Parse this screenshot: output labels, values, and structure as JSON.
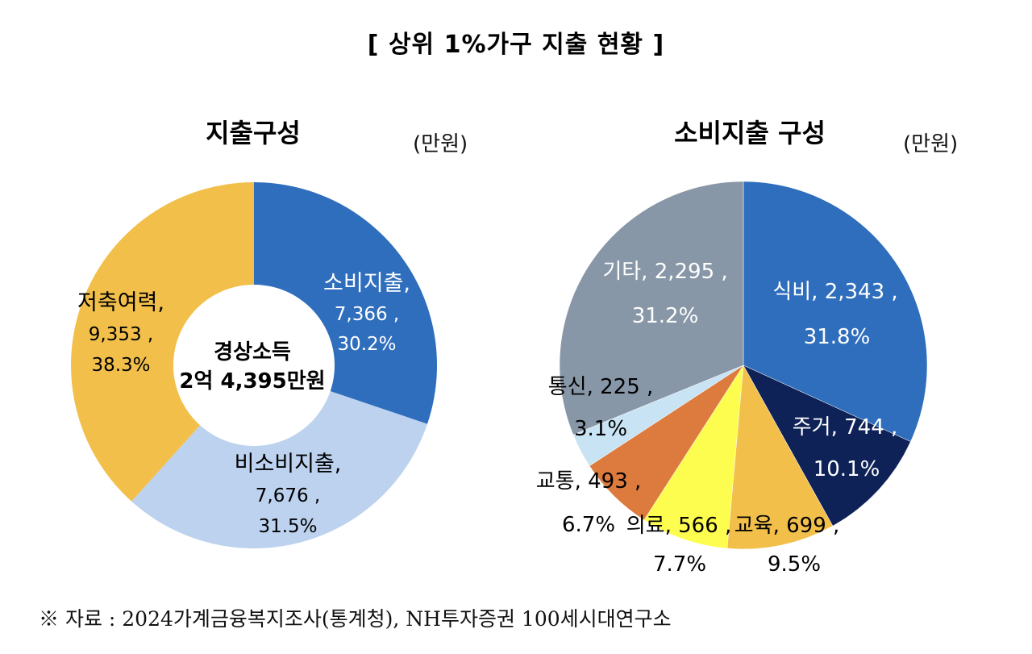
{
  "title": "[ 상위 1%가구 지출 현황 ]",
  "unit": "(만원)",
  "source": "※ 자료 : 2024가계금융복지조사(통계청), NH투자증권 100세시대연구소",
  "chart_data": [
    {
      "type": "donut",
      "title": "지출구성",
      "center_label": [
        "경상소득",
        "2억 4,395만원"
      ],
      "slices": [
        {
          "name": "소비지출,",
          "value": 7366,
          "value_label": "7,366 ,",
          "percent_label": "30.2%",
          "color": "#2f6ebc",
          "text_color": "#ffffff"
        },
        {
          "name": "비소비지출,",
          "value": 7676,
          "value_label": "7,676 ,",
          "percent_label": "31.5%",
          "color": "#bcd2ee",
          "text_color": "#000000"
        },
        {
          "name": "저축여력,",
          "value": 9353,
          "value_label": "9,353 ,",
          "percent_label": "38.3%",
          "color": "#f2c04a",
          "text_color": "#000000"
        }
      ]
    },
    {
      "type": "pie",
      "title": "소비지출 구성",
      "slices": [
        {
          "name": "식비,",
          "value": 2343,
          "value_label": "2,343 ,",
          "percent_label": "31.8%",
          "color": "#2f6ebc",
          "text_color": "#ffffff"
        },
        {
          "name": "주거,",
          "value": 744,
          "value_label": "744 ,",
          "percent_label": "10.1%",
          "color": "#0e2258",
          "text_color": "#ffffff"
        },
        {
          "name": "교육,",
          "value": 699,
          "value_label": "699 ,",
          "percent_label": "9.5%",
          "color": "#f2c04a",
          "text_color": "#000000"
        },
        {
          "name": "의료,",
          "value": 566,
          "value_label": "566 ,",
          "percent_label": "7.7%",
          "color": "#fdfd50",
          "text_color": "#000000"
        },
        {
          "name": "교통,",
          "value": 493,
          "value_label": "493 ,",
          "percent_label": "6.7%",
          "color": "#dd7a3e",
          "text_color": "#000000"
        },
        {
          "name": "통신,",
          "value": 225,
          "value_label": "225 ,",
          "percent_label": "3.1%",
          "color": "#c8e3f3",
          "text_color": "#000000"
        },
        {
          "name": "기타,",
          "value": 2295,
          "value_label": "2,295 ,",
          "percent_label": "31.2%",
          "color": "#8897a7",
          "text_color": "#ffffff"
        }
      ]
    }
  ]
}
